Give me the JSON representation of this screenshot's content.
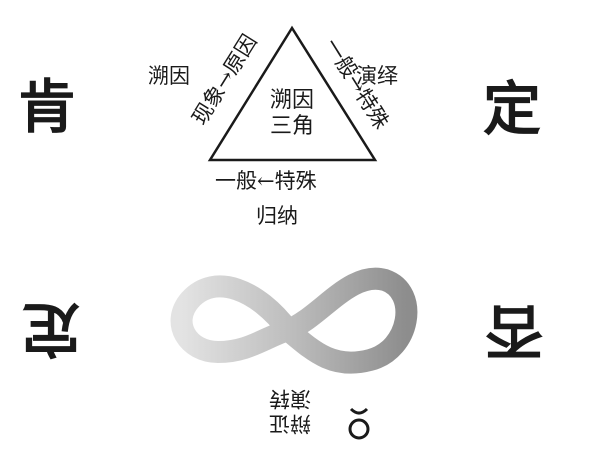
{
  "corners": {
    "top_left": "肯",
    "top_right": "定",
    "bottom_left": "定",
    "bottom_right": "否"
  },
  "triangle": {
    "center_line1": "溯因",
    "center_line2": "三角",
    "left_outer": "溯因",
    "left_edge": "现象→原因",
    "right_outer": "演绎",
    "right_edge": "一般→特殊",
    "bottom_edge": "一般←特殊",
    "bottom_outer": "归纳"
  },
  "infinity": {
    "label_line1": "辩证",
    "label_line2": "演转"
  }
}
